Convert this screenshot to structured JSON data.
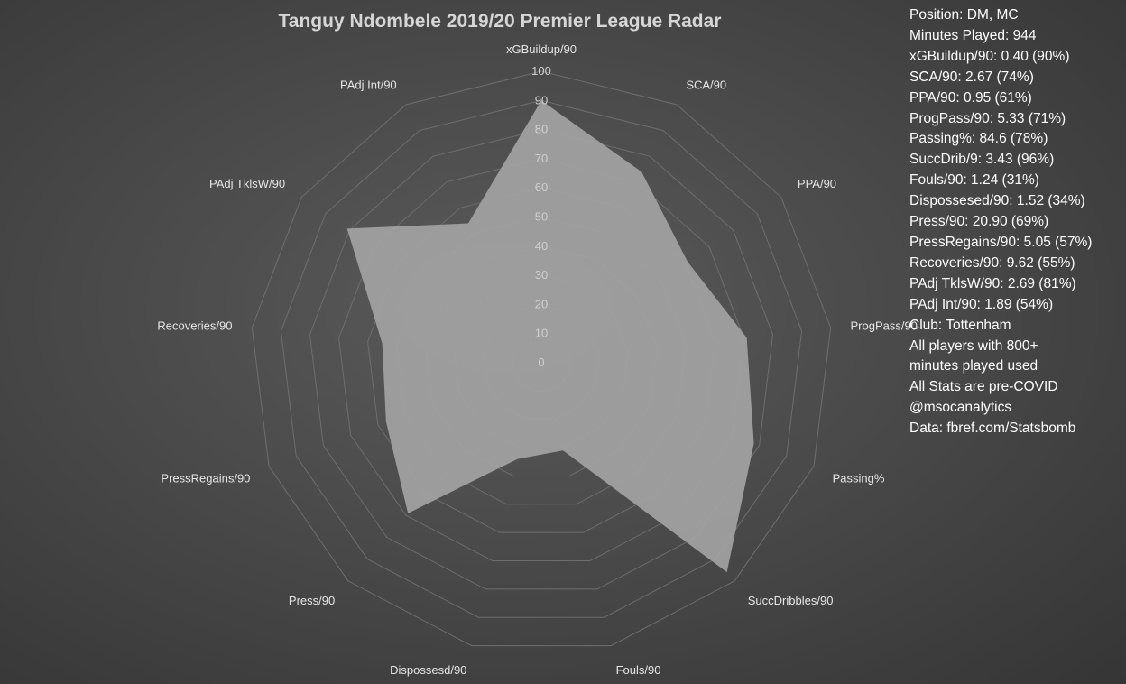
{
  "chart_data": {
    "type": "radar",
    "title": "Tanguy Ndombele 2019/20 Premier League Radar",
    "categories": [
      "xGBuildup/90",
      "SCA/90",
      "PPA/90",
      "ProgPass/90",
      "Passing%",
      "SuccDribbles/90",
      "Fouls/90",
      "Dispossesd/90",
      "Press/90",
      "PressRegains/90",
      "Recoveries/90",
      "PAdj TklsW/90",
      "PAdj Int/90"
    ],
    "values": [
      90,
      74,
      61,
      71,
      78,
      96,
      31,
      34,
      69,
      57,
      55,
      81,
      54
    ],
    "rlim": [
      0,
      100
    ],
    "rticks": [
      "0",
      "10",
      "20",
      "30",
      "40",
      "50",
      "60",
      "70",
      "80",
      "90",
      "100"
    ],
    "fill_color": "#a3a3a3",
    "grid_color": "#6e6e6e",
    "legend": "none"
  },
  "side_panel": {
    "lines": [
      "Position: DM, MC",
      "Minutes Played: 944",
      "xGBuildup/90: 0.40 (90%)",
      "SCA/90: 2.67 (74%)",
      "PPA/90: 0.95 (61%)",
      "ProgPass/90: 5.33 (71%)",
      "Passing%: 84.6 (78%)",
      "SuccDrib/9: 3.43 (96%)",
      "Fouls/90: 1.24 (31%)",
      "Dispossesed/90: 1.52 (34%)",
      "Press/90: 20.90 (69%)",
      "PressRegains/90: 5.05 (57%)",
      "Recoveries/90: 9.62 (55%)",
      "PAdj TklsW/90: 2.69 (81%)",
      "PAdj Int/90: 1.89 (54%)",
      "Club: Tottenham",
      "All players with 800+",
      "minutes played used",
      "All Stats are pre-COVID",
      "@msocanalytics",
      "Data: fbref.com/Statsbomb"
    ]
  }
}
